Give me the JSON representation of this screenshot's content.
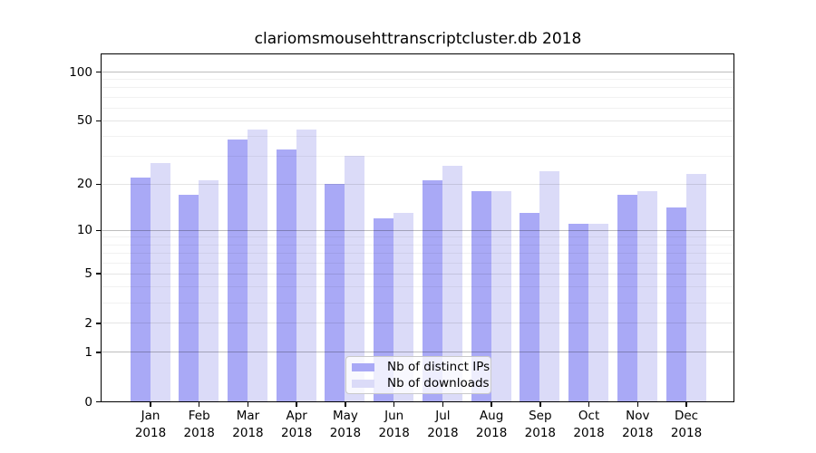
{
  "title": "clariomsmousehttranscriptcluster.db 2018",
  "chart_data": {
    "type": "bar",
    "title": "clariomsmousehttranscriptcluster.db 2018",
    "scale": "log10(value+1)",
    "categories": [
      "Jan",
      "Feb",
      "Mar",
      "Apr",
      "May",
      "Jun",
      "Jul",
      "Aug",
      "Sep",
      "Oct",
      "Nov",
      "Dec"
    ],
    "category_year": "2018",
    "series": [
      {
        "name": "Nb of distinct IPs",
        "color": "#a9a9f6",
        "values": [
          22,
          17,
          38,
          33,
          20,
          12,
          21,
          18,
          13,
          11,
          17,
          14
        ]
      },
      {
        "name": "Nb of downloads",
        "color": "#dbdbf8",
        "values": [
          27,
          21,
          44,
          44,
          30,
          13,
          26,
          18,
          24,
          11,
          18,
          23
        ]
      }
    ],
    "ylim": [
      0,
      130
    ],
    "yticks": [
      0,
      1,
      2,
      5,
      10,
      20,
      50,
      100
    ],
    "minor_gridlines": [
      3,
      4,
      6,
      7,
      8,
      9,
      30,
      40,
      60,
      70,
      80,
      90
    ],
    "grid": true,
    "legend_position": "bottom-center",
    "colors": {
      "axis": "#000000",
      "gridline_major_power10": "rgba(0,0,0,0.26)",
      "gridline_major": "rgba(0,0,0,0.10)",
      "gridline_minor": "rgba(0,0,0,0.055)"
    }
  },
  "legend": {
    "items": [
      {
        "label": "Nb of distinct IPs"
      },
      {
        "label": "Nb of downloads"
      }
    ]
  }
}
